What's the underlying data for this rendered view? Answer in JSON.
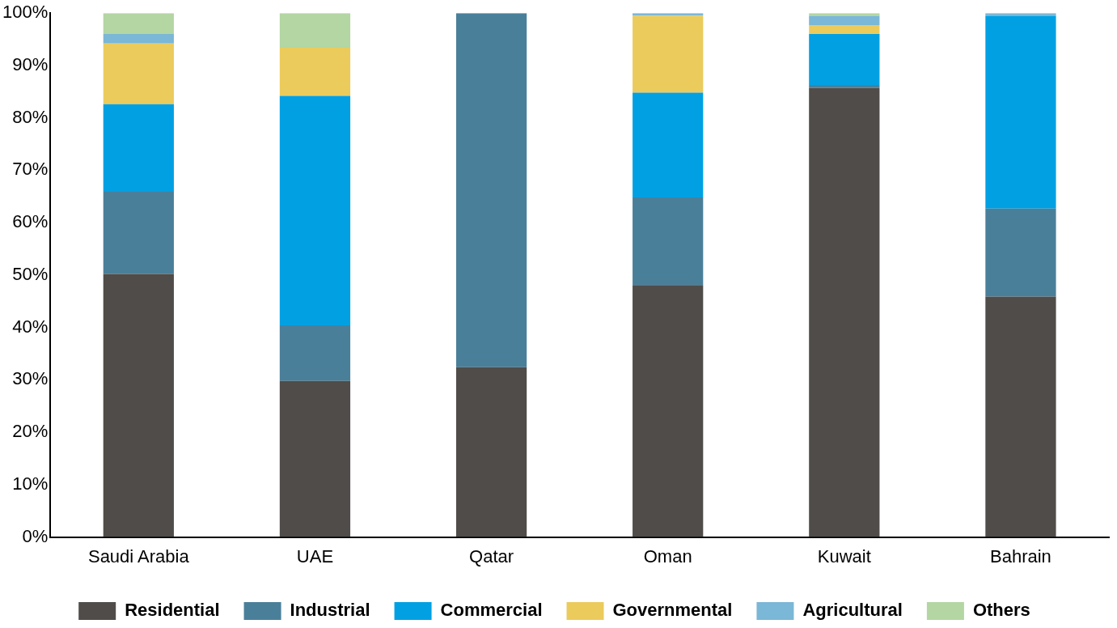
{
  "chart_data": {
    "type": "bar",
    "stacked": true,
    "categories": [
      "Saudi Arabia",
      "UAE",
      "Qatar",
      "Oman",
      "Kuwait",
      "Bahrain"
    ],
    "series": [
      {
        "name": "Residential",
        "color": "#4f4c49",
        "values": [
          50.2,
          29.8,
          32.4,
          48.1,
          85.7,
          45.9
        ]
      },
      {
        "name": "Industrial",
        "color": "#4a7f9a",
        "values": [
          15.7,
          10.6,
          67.6,
          16.7,
          0.6,
          16.8
        ]
      },
      {
        "name": "Commercial",
        "color": "#00a0e3",
        "values": [
          16.7,
          43.8,
          0,
          20.0,
          9.7,
          36.8
        ]
      },
      {
        "name": "Governmental",
        "color": "#ebcb5c",
        "values": [
          11.6,
          9.2,
          0,
          14.7,
          1.7,
          0
        ]
      },
      {
        "name": "Agricultural",
        "color": "#7bb7d6",
        "values": [
          1.8,
          0,
          0,
          0.5,
          1.8,
          0.5
        ]
      },
      {
        "name": "Others",
        "color": "#b3d6a3",
        "values": [
          4.0,
          6.6,
          0,
          0,
          0.5,
          0
        ]
      }
    ],
    "ylim": [
      0,
      100
    ],
    "yticks": [
      {
        "value": 0,
        "label": "0%"
      },
      {
        "value": 10,
        "label": "10%"
      },
      {
        "value": 20,
        "label": "20%"
      },
      {
        "value": 30,
        "label": "30%"
      },
      {
        "value": 40,
        "label": "40%"
      },
      {
        "value": 50,
        "label": "50%"
      },
      {
        "value": 60,
        "label": "60%"
      },
      {
        "value": 70,
        "label": "70%"
      },
      {
        "value": 80,
        "label": "80%"
      },
      {
        "value": 90,
        "label": "90%"
      },
      {
        "value": 100,
        "label": "100%"
      }
    ],
    "grid": false,
    "legend": "bottom"
  }
}
